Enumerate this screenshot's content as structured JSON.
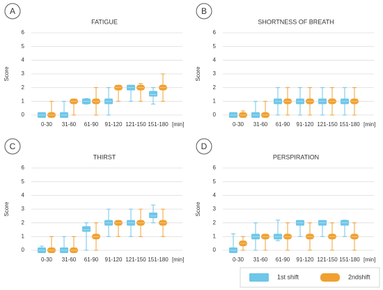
{
  "chart_data": [
    {
      "type": "box",
      "panel": "A",
      "title": "FATIGUE",
      "ylabel": "Score",
      "xlabel": "[min]",
      "categories": [
        "0-30",
        "31-60",
        "61-90",
        "91-120",
        "121-150",
        "151-180"
      ],
      "ylim": [
        0,
        6
      ],
      "yticks": [
        0,
        1,
        2,
        3,
        4,
        5,
        6
      ],
      "grid": true,
      "series": [
        {
          "name": "1st shift",
          "color": "#6ec6e8",
          "values": [
            {
              "min": 0,
              "q1": 0,
              "median": 0,
              "q3": 0,
              "max": 0
            },
            {
              "min": 0,
              "q1": 0,
              "median": 0,
              "q3": 0,
              "max": 1
            },
            {
              "min": 0.8,
              "q1": 1,
              "median": 1,
              "q3": 1,
              "max": 1.2
            },
            {
              "min": 0,
              "q1": 1,
              "median": 1,
              "q3": 1,
              "max": 2
            },
            {
              "min": 1,
              "q1": 2,
              "median": 2,
              "q3": 2,
              "max": 2
            },
            {
              "min": 0.8,
              "q1": 1.5,
              "median": 1.5,
              "q3": 1.6,
              "max": 2
            }
          ]
        },
        {
          "name": "2ndshift",
          "color": "#f0a030",
          "values": [
            {
              "min": 0,
              "q1": 0,
              "median": 0,
              "q3": 0,
              "max": 1
            },
            {
              "min": 0,
              "q1": 1,
              "median": 1,
              "q3": 1,
              "max": 1
            },
            {
              "min": 0,
              "q1": 1,
              "median": 1,
              "q3": 1,
              "max": 2
            },
            {
              "min": 1,
              "q1": 2,
              "median": 2,
              "q3": 2,
              "max": 2
            },
            {
              "min": 1,
              "q1": 2,
              "median": 2,
              "q3": 2,
              "max": 2.3
            },
            {
              "min": 1,
              "q1": 2,
              "median": 2,
              "q3": 2,
              "max": 3
            }
          ]
        }
      ]
    },
    {
      "type": "box",
      "panel": "B",
      "title": "SHORTNESS OF BREATH",
      "ylabel": "Score",
      "xlabel": "[min]",
      "categories": [
        "0-30",
        "31-60",
        "61-90",
        "91-120",
        "121-150",
        "151-180"
      ],
      "ylim": [
        0,
        6
      ],
      "yticks": [
        0,
        1,
        2,
        3,
        4,
        5,
        6
      ],
      "grid": true,
      "series": [
        {
          "name": "1st shift",
          "color": "#6ec6e8",
          "values": [
            {
              "min": 0,
              "q1": 0,
              "median": 0,
              "q3": 0,
              "max": 0
            },
            {
              "min": 0,
              "q1": 0,
              "median": 0,
              "q3": 0,
              "max": 1
            },
            {
              "min": 0,
              "q1": 1,
              "median": 1,
              "q3": 1,
              "max": 2
            },
            {
              "min": 0,
              "q1": 1,
              "median": 1,
              "q3": 1,
              "max": 2
            },
            {
              "min": 0,
              "q1": 1,
              "median": 1,
              "q3": 1,
              "max": 2
            },
            {
              "min": 0,
              "q1": 1,
              "median": 1,
              "q3": 1,
              "max": 2
            }
          ]
        },
        {
          "name": "2ndshift",
          "color": "#f0a030",
          "values": [
            {
              "min": 0,
              "q1": 0,
              "median": 0,
              "q3": 0,
              "max": 0.3
            },
            {
              "min": 0,
              "q1": 0,
              "median": 0,
              "q3": 0,
              "max": 1
            },
            {
              "min": 0,
              "q1": 1,
              "median": 1,
              "q3": 1,
              "max": 2
            },
            {
              "min": 0,
              "q1": 1,
              "median": 1,
              "q3": 1,
              "max": 2
            },
            {
              "min": 0,
              "q1": 1,
              "median": 1,
              "q3": 1,
              "max": 2
            },
            {
              "min": 0,
              "q1": 1,
              "median": 1,
              "q3": 1,
              "max": 2
            }
          ]
        }
      ]
    },
    {
      "type": "box",
      "panel": "C",
      "title": "THIRST",
      "ylabel": "Score",
      "xlabel": "[min]",
      "categories": [
        "0-30",
        "31-60",
        "61-90",
        "91-120",
        "121-150",
        "151-180"
      ],
      "ylim": [
        0,
        6
      ],
      "yticks": [
        0,
        1,
        2,
        3,
        4,
        5,
        6
      ],
      "grid": true,
      "series": [
        {
          "name": "1st shift",
          "color": "#6ec6e8",
          "values": [
            {
              "min": 0,
              "q1": 0,
              "median": 0,
              "q3": 0,
              "max": 0.3
            },
            {
              "min": 0,
              "q1": 0,
              "median": 0,
              "q3": 0,
              "max": 1
            },
            {
              "min": 0,
              "q1": 1.5,
              "median": 1.5,
              "q3": 1.6,
              "max": 2
            },
            {
              "min": 1,
              "q1": 2,
              "median": 2,
              "q3": 2,
              "max": 3
            },
            {
              "min": 1,
              "q1": 2,
              "median": 2,
              "q3": 2,
              "max": 3
            },
            {
              "min": 2,
              "q1": 2.5,
              "median": 2.5,
              "q3": 2.6,
              "max": 3.3
            }
          ]
        },
        {
          "name": "2ndshift",
          "color": "#f0a030",
          "values": [
            {
              "min": 0,
              "q1": 0,
              "median": 0,
              "q3": 0,
              "max": 1
            },
            {
              "min": 0,
              "q1": 0,
              "median": 0,
              "q3": 0,
              "max": 1
            },
            {
              "min": 0,
              "q1": 1,
              "median": 1,
              "q3": 1,
              "max": 2
            },
            {
              "min": 1,
              "q1": 2,
              "median": 2,
              "q3": 2,
              "max": 2
            },
            {
              "min": 1,
              "q1": 2,
              "median": 2,
              "q3": 2,
              "max": 3
            },
            {
              "min": 1,
              "q1": 2,
              "median": 2,
              "q3": 2,
              "max": 3
            }
          ]
        }
      ]
    },
    {
      "type": "box",
      "panel": "D",
      "title": "PERSPIRATION",
      "ylabel": "Score",
      "xlabel": "[min]",
      "categories": [
        "0-30",
        "31-60",
        "61-90",
        "91-120",
        "121-150",
        "151-180"
      ],
      "ylim": [
        0,
        6
      ],
      "yticks": [
        0,
        1,
        2,
        3,
        4,
        5,
        6
      ],
      "grid": true,
      "series": [
        {
          "name": "1st shift",
          "color": "#6ec6e8",
          "values": [
            {
              "min": 0,
              "q1": 0,
              "median": 0,
              "q3": 0,
              "max": 1.2
            },
            {
              "min": 0,
              "q1": 1,
              "median": 1,
              "q3": 1,
              "max": 2
            },
            {
              "min": 0.7,
              "q1": 1,
              "median": 1,
              "q3": 1,
              "max": 2.2
            },
            {
              "min": 1,
              "q1": 2,
              "median": 2,
              "q3": 2,
              "max": 2
            },
            {
              "min": 1,
              "q1": 2,
              "median": 2,
              "q3": 2,
              "max": 2
            },
            {
              "min": 1,
              "q1": 2,
              "median": 2,
              "q3": 2,
              "max": 2.2
            }
          ]
        },
        {
          "name": "2ndshift",
          "color": "#f0a030",
          "values": [
            {
              "min": 0,
              "q1": 0.5,
              "median": 0.5,
              "q3": 0.5,
              "max": 1
            },
            {
              "min": 0,
              "q1": 1,
              "median": 1,
              "q3": 1,
              "max": 1
            },
            {
              "min": 0,
              "q1": 1,
              "median": 1,
              "q3": 1,
              "max": 2
            },
            {
              "min": 0,
              "q1": 1,
              "median": 1,
              "q3": 1,
              "max": 2
            },
            {
              "min": 0,
              "q1": 1,
              "median": 1,
              "q3": 1,
              "max": 2
            },
            {
              "min": 0,
              "q1": 1,
              "median": 1,
              "q3": 1,
              "max": 2
            }
          ]
        }
      ]
    }
  ]
}
